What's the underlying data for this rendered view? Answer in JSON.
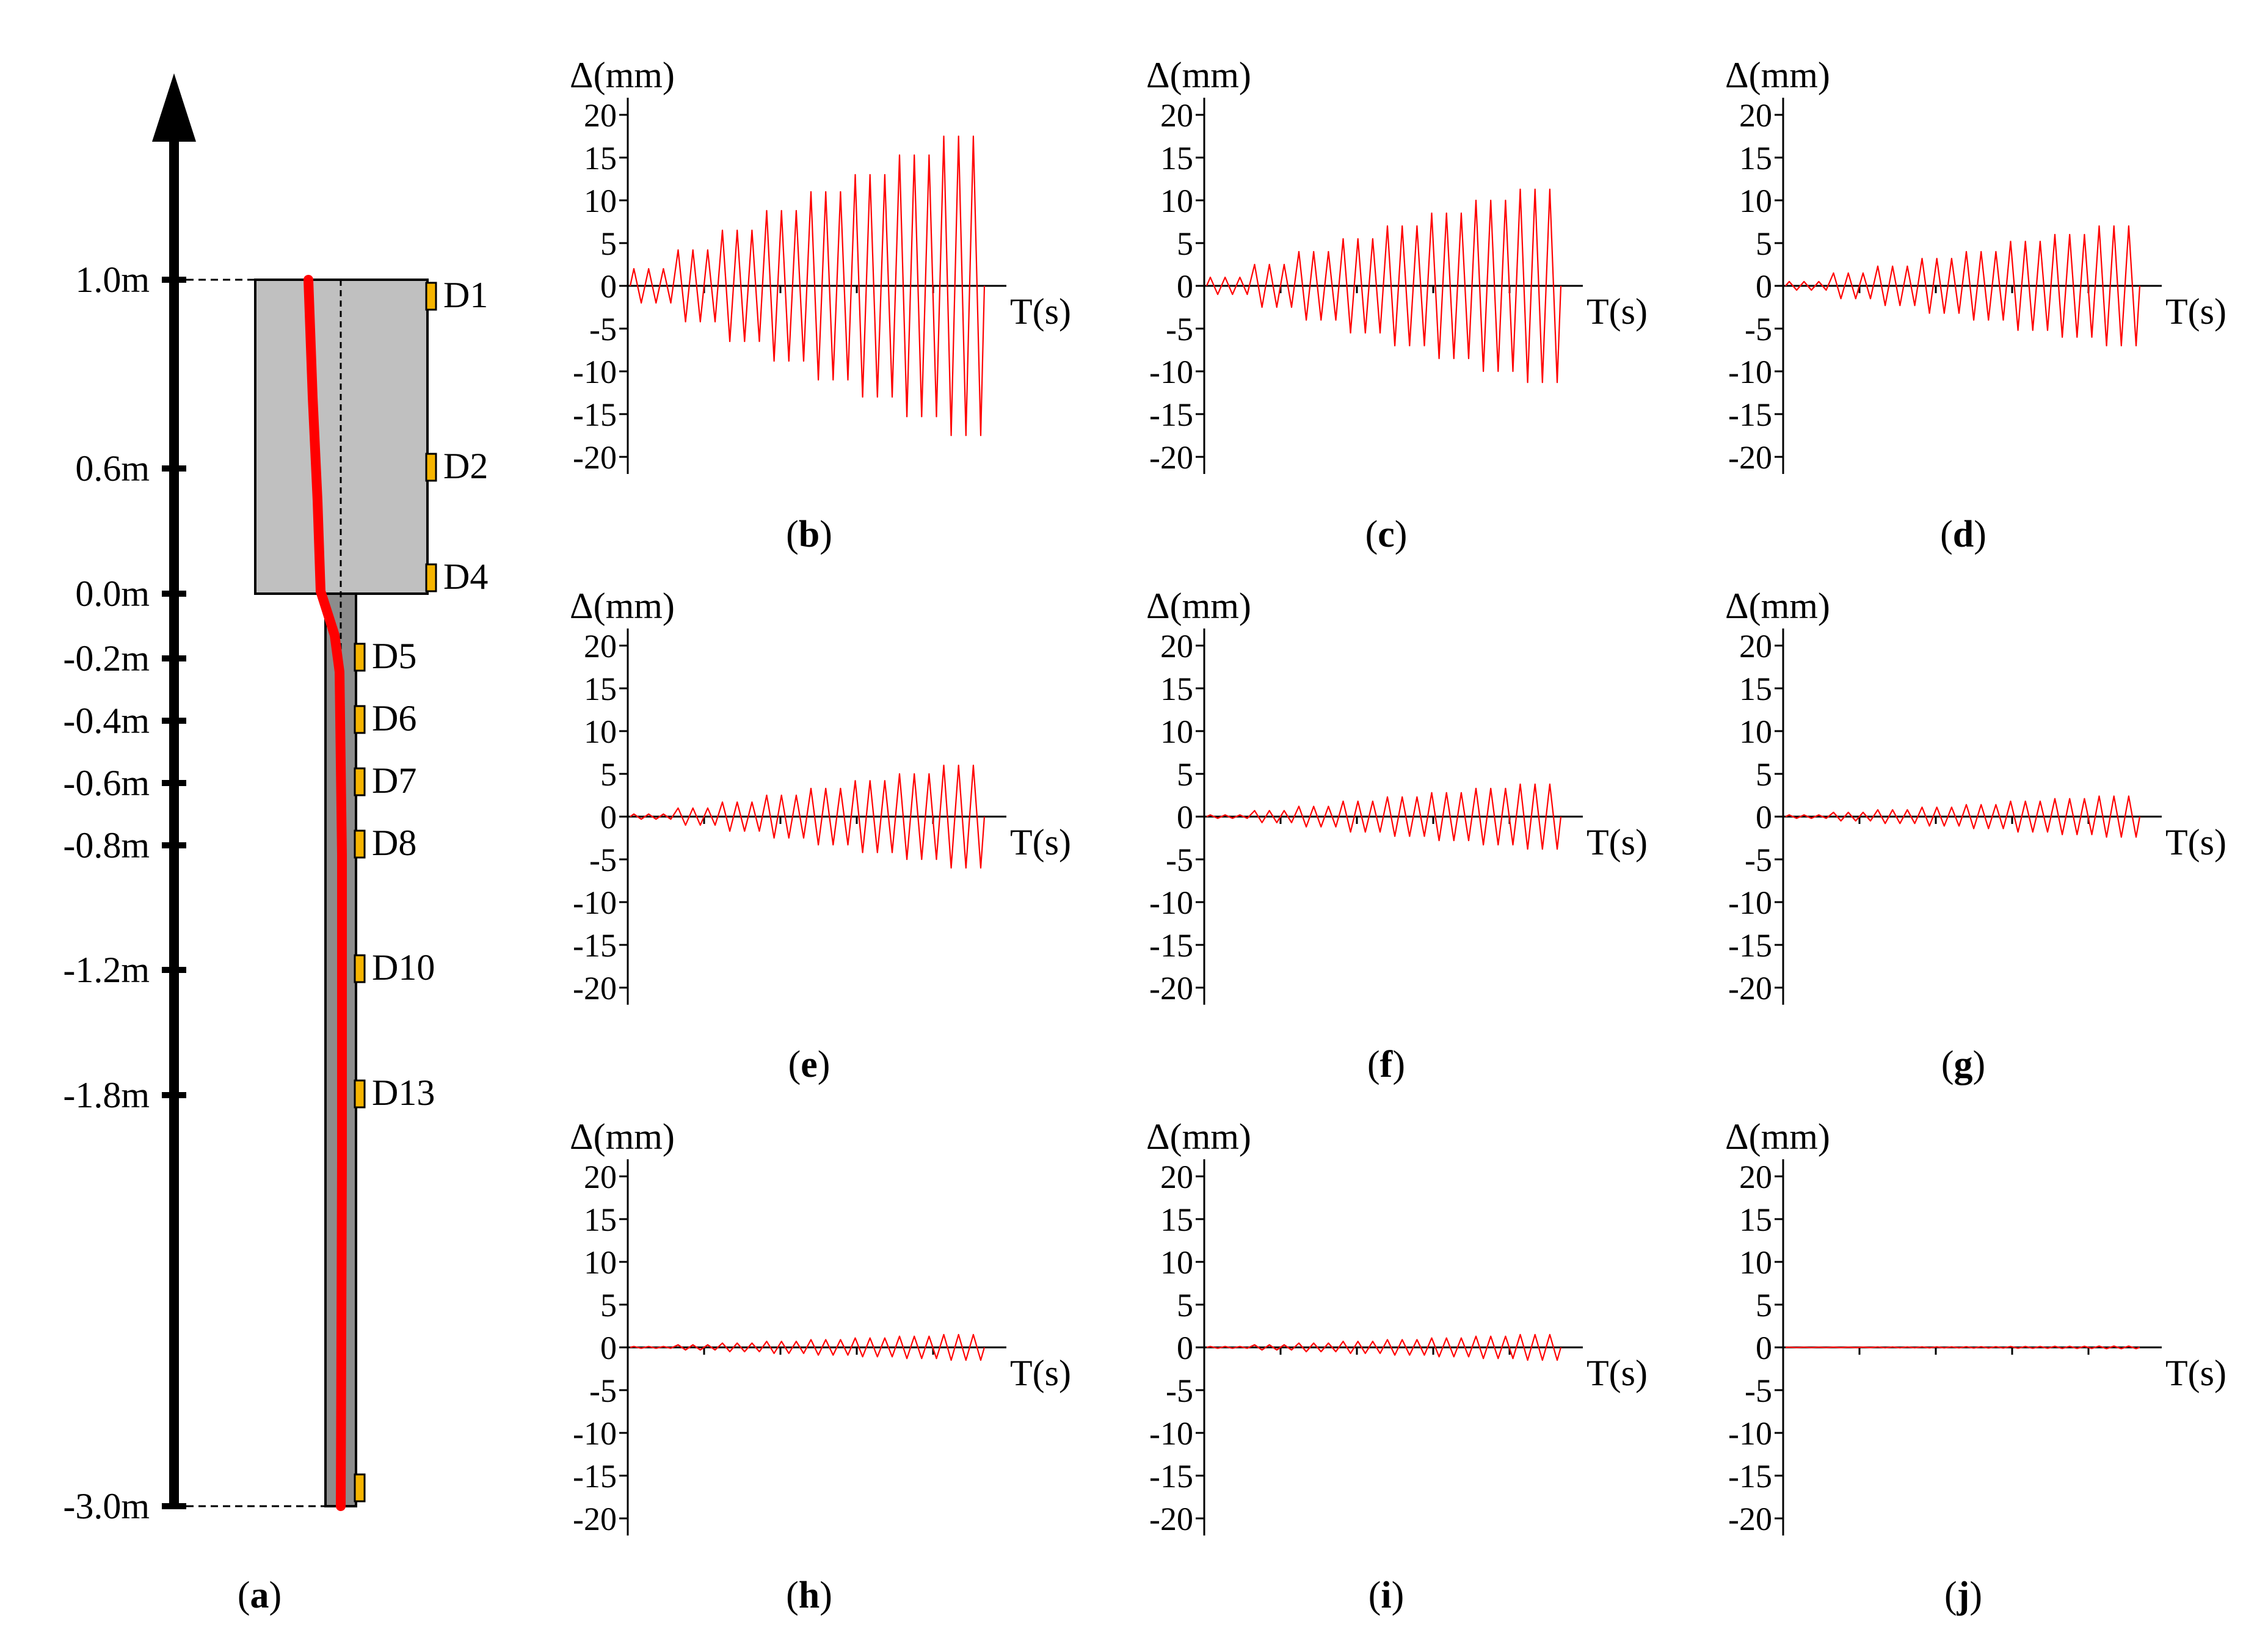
{
  "panel_a": {
    "caption": "a",
    "depth_labels": [
      "1.0m",
      "0.6m",
      "0.0m",
      "-0.2m",
      "-0.4m",
      "-0.6m",
      "-0.8m",
      "-1.2m",
      "-1.8m",
      "-3.0m"
    ],
    "depth_values": [
      1.0,
      0.6,
      0.0,
      -0.2,
      -0.4,
      -0.6,
      -0.8,
      -1.2,
      -1.8,
      -3.0
    ],
    "sensors": [
      {
        "label": "D1",
        "depth": 1.0
      },
      {
        "label": "D2",
        "depth": 0.6
      },
      {
        "label": "D4",
        "depth": 0.0
      },
      {
        "label": "D5",
        "depth": -0.2
      },
      {
        "label": "D6",
        "depth": -0.4
      },
      {
        "label": "D7",
        "depth": -0.6
      },
      {
        "label": "D8",
        "depth": -0.8
      },
      {
        "label": "D10",
        "depth": -1.2
      },
      {
        "label": "D13",
        "depth": -1.8
      },
      {
        "label": "",
        "depth": -3.0
      }
    ],
    "colors": {
      "cap": "#c0c0c0",
      "pile": "#8c8c8c",
      "sensor": "#f5b400",
      "curve": "#ff0000",
      "axis": "#000000"
    }
  },
  "chart_data": [
    {
      "type": "line",
      "panel": "b",
      "ylabel": "Δ(mm)",
      "xlabel": "T(s)",
      "ylim": [
        -20,
        20
      ],
      "yticks": [
        20,
        15,
        10,
        5,
        0,
        -5,
        -10,
        -15,
        -20
      ],
      "cycles": 8,
      "reps": 3,
      "amplitudes": [
        2,
        4.2,
        6.5,
        8.8,
        11,
        13,
        15.3,
        17.5
      ],
      "color": "#ff0000"
    },
    {
      "type": "line",
      "panel": "c",
      "ylabel": "Δ(mm)",
      "xlabel": "T(s)",
      "ylim": [
        -20,
        20
      ],
      "yticks": [
        20,
        15,
        10,
        5,
        0,
        -5,
        -10,
        -15,
        -20
      ],
      "cycles": 8,
      "reps": 3,
      "amplitudes": [
        1,
        2.5,
        4,
        5.5,
        7,
        8.5,
        10,
        11.3
      ],
      "color": "#ff0000"
    },
    {
      "type": "line",
      "panel": "d",
      "ylabel": "Δ(mm)",
      "xlabel": "T(s)",
      "ylim": [
        -20,
        20
      ],
      "yticks": [
        20,
        15,
        10,
        5,
        0,
        -5,
        -10,
        -15,
        -20
      ],
      "cycles": 8,
      "reps": 3,
      "amplitudes": [
        0.5,
        1.5,
        2.3,
        3.2,
        4,
        5.2,
        6,
        7
      ],
      "color": "#ff0000"
    },
    {
      "type": "line",
      "panel": "e",
      "ylabel": "Δ(mm)",
      "xlabel": "T(s)",
      "ylim": [
        -20,
        20
      ],
      "yticks": [
        20,
        15,
        10,
        5,
        0,
        -5,
        -10,
        -15,
        -20
      ],
      "cycles": 8,
      "reps": 3,
      "amplitudes": [
        0.3,
        1,
        1.7,
        2.5,
        3.3,
        4.2,
        5,
        6
      ],
      "color": "#ff0000"
    },
    {
      "type": "line",
      "panel": "f",
      "ylabel": "Δ(mm)",
      "xlabel": "T(s)",
      "ylim": [
        -20,
        20
      ],
      "yticks": [
        20,
        15,
        10,
        5,
        0,
        -5,
        -10,
        -15,
        -20
      ],
      "cycles": 8,
      "reps": 3,
      "amplitudes": [
        0.2,
        0.7,
        1.2,
        1.8,
        2.3,
        2.8,
        3.3,
        3.8
      ],
      "color": "#ff0000"
    },
    {
      "type": "line",
      "panel": "g",
      "ylabel": "Δ(mm)",
      "xlabel": "T(s)",
      "ylim": [
        -20,
        20
      ],
      "yticks": [
        20,
        15,
        10,
        5,
        0,
        -5,
        -10,
        -15,
        -20
      ],
      "cycles": 8,
      "reps": 3,
      "amplitudes": [
        0.2,
        0.5,
        0.8,
        1.1,
        1.4,
        1.8,
        2.1,
        2.4
      ],
      "color": "#ff0000"
    },
    {
      "type": "line",
      "panel": "h",
      "ylabel": "Δ(mm)",
      "xlabel": "T(s)",
      "ylim": [
        -20,
        20
      ],
      "yticks": [
        20,
        15,
        10,
        5,
        0,
        -5,
        -10,
        -15,
        -20
      ],
      "cycles": 8,
      "reps": 3,
      "amplitudes": [
        0.1,
        0.3,
        0.5,
        0.7,
        0.9,
        1.1,
        1.3,
        1.5
      ],
      "color": "#ff0000"
    },
    {
      "type": "line",
      "panel": "i",
      "ylabel": "Δ(mm)",
      "xlabel": "T(s)",
      "ylim": [
        -20,
        20
      ],
      "yticks": [
        20,
        15,
        10,
        5,
        0,
        -5,
        -10,
        -15,
        -20
      ],
      "cycles": 8,
      "reps": 3,
      "amplitudes": [
        0.1,
        0.3,
        0.5,
        0.7,
        0.9,
        1.1,
        1.3,
        1.5
      ],
      "color": "#ff0000"
    },
    {
      "type": "line",
      "panel": "j",
      "ylabel": "Δ(mm)",
      "xlabel": "T(s)",
      "ylim": [
        -20,
        20
      ],
      "yticks": [
        20,
        15,
        10,
        5,
        0,
        -5,
        -10,
        -15,
        -20
      ],
      "cycles": 8,
      "reps": 3,
      "amplitudes": [
        0.02,
        0.03,
        0.05,
        0.06,
        0.08,
        0.1,
        0.12,
        0.15
      ],
      "color": "#ff0000"
    }
  ]
}
